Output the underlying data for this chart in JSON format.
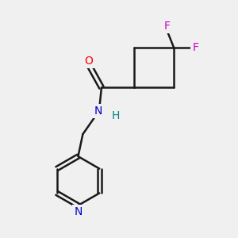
{
  "bg_color": "#f0f0f0",
  "bond_color": "#1a1a1a",
  "bond_width": 1.8,
  "atom_colors": {
    "O": "#ff0000",
    "N": "#0000cc",
    "F": "#cc00cc",
    "H_label": "#008080",
    "C": "#1a1a1a"
  },
  "font_size": 10,
  "figsize": [
    3.0,
    3.0
  ],
  "dpi": 100
}
